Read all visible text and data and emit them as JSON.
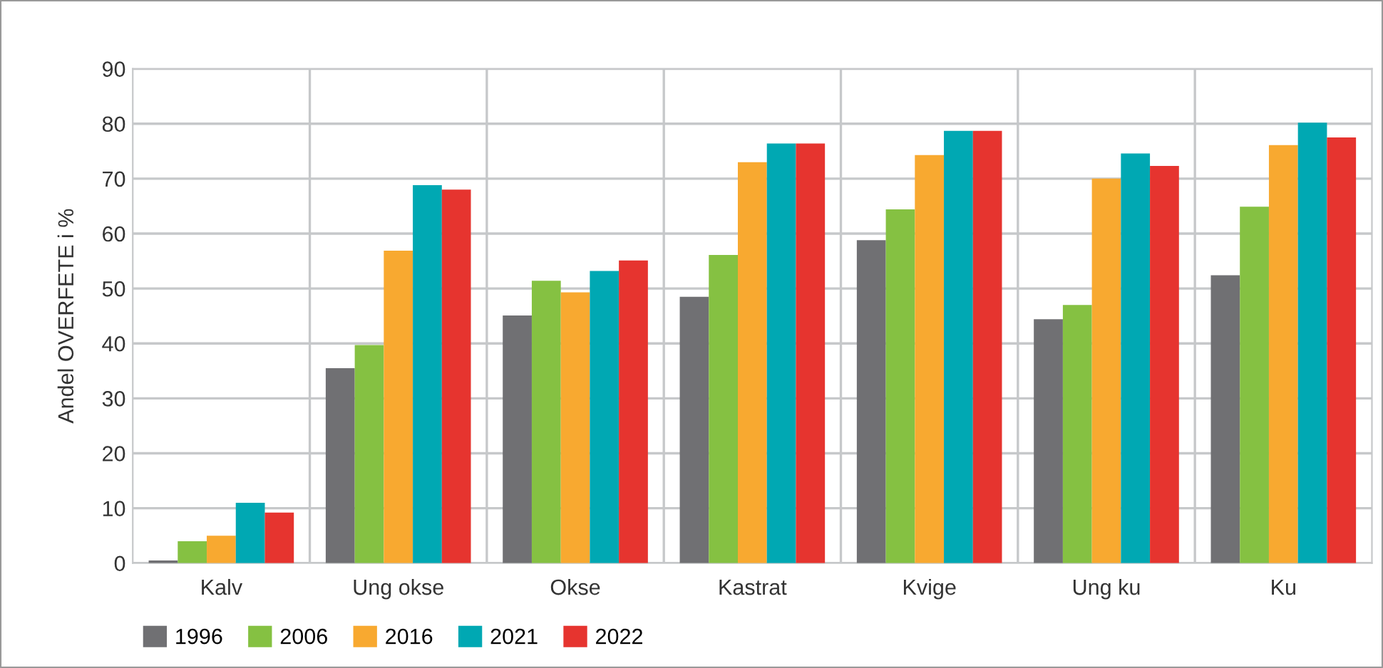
{
  "chart_data": {
    "type": "bar",
    "ylabel": "Andel OVERFETE i %",
    "categories": [
      "Kalv",
      "Ung okse",
      "Okse",
      "Kastrat",
      "Kvige",
      "Ung ku",
      "Ku"
    ],
    "series": [
      {
        "name": "1996",
        "color": "#707073",
        "values": [
          0.5,
          35.5,
          45.1,
          48.5,
          58.8,
          44.4,
          52.4
        ]
      },
      {
        "name": "2006",
        "color": "#85c142",
        "values": [
          4,
          39.7,
          51.4,
          56.1,
          64.4,
          47,
          64.9
        ]
      },
      {
        "name": "2016",
        "color": "#f8a930",
        "values": [
          5,
          56.9,
          49.3,
          73,
          74.3,
          70,
          76.1
        ]
      },
      {
        "name": "2021",
        "color": "#00a8b3",
        "values": [
          11,
          68.8,
          53.2,
          76.4,
          78.7,
          74.6,
          80.2
        ]
      },
      {
        "name": "2022",
        "color": "#e6342f",
        "values": [
          9.2,
          68,
          55.1,
          76.4,
          78.7,
          72.3,
          77.5
        ]
      }
    ],
    "ylim": [
      0,
      90
    ],
    "yticks": [
      0,
      10,
      20,
      30,
      40,
      50,
      60,
      70,
      80,
      90
    ],
    "grid": true,
    "legend": "bottom left"
  }
}
